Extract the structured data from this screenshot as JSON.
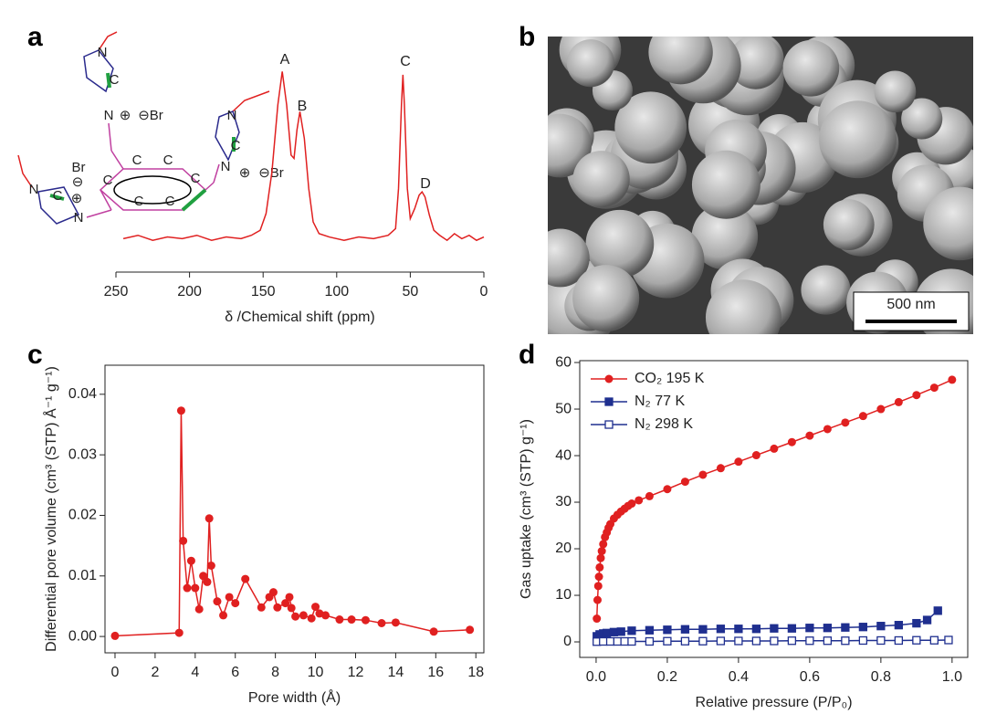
{
  "panel_labels": [
    "a",
    "b",
    "c",
    "d"
  ],
  "structure": {
    "labels": [
      "N",
      "C",
      "N",
      "⊕",
      "⊖Br",
      "N",
      "C",
      "N",
      "⊕",
      "⊖Br",
      "Br",
      "⊖",
      "N",
      "C",
      "⊕",
      "N",
      "C",
      "C",
      "C",
      "C",
      "C",
      "C"
    ]
  },
  "image_panel": {
    "scale_bar": "500 nm"
  },
  "chart_data": [
    {
      "type": "line",
      "xlabel": "δ /Chemical shift (ppm)",
      "color": "#e02020",
      "x": [
        245,
        235,
        225,
        215,
        205,
        195,
        185,
        175,
        165,
        158,
        152,
        148,
        144,
        140,
        137,
        134,
        131,
        129,
        127,
        125,
        122,
        119,
        116,
        112,
        105,
        95,
        85,
        75,
        65,
        60,
        58,
        56,
        55,
        54,
        52,
        50,
        47,
        44,
        42,
        40,
        37,
        34,
        30,
        25,
        20,
        15,
        10,
        5,
        0
      ],
      "values": [
        0,
        2,
        -1,
        1,
        0,
        2,
        -1,
        1,
        0,
        2,
        5,
        15,
        40,
        80,
        100,
        80,
        50,
        48,
        65,
        76,
        60,
        30,
        10,
        3,
        1,
        -1,
        1,
        0,
        2,
        6,
        30,
        80,
        98,
        80,
        30,
        12,
        18,
        26,
        28,
        25,
        14,
        5,
        2,
        -1,
        3,
        0,
        2,
        -1,
        1
      ],
      "xlim": [
        250,
        0
      ],
      "xticks": [
        250,
        200,
        150,
        100,
        50,
        0
      ],
      "ylim": [
        -20,
        110
      ],
      "annotations": [
        {
          "text": "A",
          "color": "#2ca02c"
        },
        {
          "text": "B",
          "color": "#2a2a8c"
        },
        {
          "text": "C",
          "color": "#d0209a"
        },
        {
          "text": "D",
          "color": "#e02020"
        }
      ]
    },
    {
      "type": "line",
      "xlabel": "Pore width (Å)",
      "ylabel": "Differential pore volume (cm³ (STP) Å⁻¹ g⁻¹)",
      "series": [
        {
          "name": null,
          "color": "#e02020",
          "marker": "circle",
          "x": [
            0,
            3.2,
            3.3,
            3.4,
            3.6,
            3.8,
            4.0,
            4.2,
            4.4,
            4.6,
            4.7,
            4.8,
            5.1,
            5.4,
            5.7,
            6.0,
            6.5,
            7.3,
            7.7,
            7.9,
            8.1,
            8.5,
            8.7,
            8.8,
            9.0,
            9.4,
            9.8,
            10.0,
            10.2,
            10.5,
            11.2,
            11.8,
            12.5,
            13.3,
            14.0,
            15.9,
            17.7
          ],
          "values": [
            0.0001,
            0.0006,
            0.0373,
            0.0158,
            0.008,
            0.0125,
            0.008,
            0.0045,
            0.01,
            0.009,
            0.0195,
            0.0117,
            0.0058,
            0.0035,
            0.0065,
            0.0055,
            0.0095,
            0.0048,
            0.0065,
            0.0073,
            0.0048,
            0.0055,
            0.0065,
            0.0047,
            0.0033,
            0.0035,
            0.003,
            0.0049,
            0.0038,
            0.0035,
            0.0028,
            0.0028,
            0.0027,
            0.0022,
            0.0023,
            0.0008,
            0.0011
          ]
        }
      ],
      "xlim": [
        -0.5,
        18.4
      ],
      "xticks": [
        0,
        2,
        4,
        6,
        8,
        10,
        12,
        14,
        16,
        18
      ],
      "ylim": [
        -0.0027,
        0.0448
      ],
      "yticks": [
        {
          "value": 0,
          "label": "0.00"
        },
        0.01,
        0.02,
        0.03,
        0.04
      ]
    },
    {
      "type": "line",
      "xlabel": "Relative pressure (P/P₀)",
      "ylabel": "Gas uptake (cm³ (STP) g⁻¹)",
      "legend": "upper left",
      "series": [
        {
          "name": "CO₂ 195 K",
          "color": "#e02020",
          "marker": "circle",
          "x": [
            0.002,
            0.004,
            0.006,
            0.008,
            0.01,
            0.013,
            0.016,
            0.02,
            0.025,
            0.03,
            0.035,
            0.04,
            0.05,
            0.06,
            0.07,
            0.08,
            0.09,
            0.1,
            0.12,
            0.15,
            0.2,
            0.25,
            0.3,
            0.35,
            0.4,
            0.45,
            0.5,
            0.55,
            0.6,
            0.65,
            0.7,
            0.75,
            0.8,
            0.85,
            0.9,
            0.95,
            1.0
          ],
          "values": [
            5,
            9,
            12,
            14,
            16,
            18,
            19.5,
            21,
            22.5,
            23.5,
            24.5,
            25.3,
            26.5,
            27.3,
            28,
            28.6,
            29.2,
            29.7,
            30.4,
            31.3,
            32.8,
            34.4,
            35.9,
            37.3,
            38.7,
            40.1,
            41.5,
            42.9,
            44.3,
            45.7,
            47.1,
            48.5,
            50.0,
            51.5,
            53.0,
            54.6,
            56.3
          ]
        },
        {
          "name": "N₂   77 K",
          "color": "#1f2f8f",
          "marker": "square",
          "x": [
            0.002,
            0.01,
            0.02,
            0.03,
            0.05,
            0.07,
            0.1,
            0.15,
            0.2,
            0.25,
            0.3,
            0.35,
            0.4,
            0.45,
            0.5,
            0.55,
            0.6,
            0.65,
            0.7,
            0.75,
            0.8,
            0.85,
            0.9,
            0.93,
            0.96
          ],
          "values": [
            1.2,
            1.6,
            1.8,
            1.9,
            2.1,
            2.2,
            2.4,
            2.5,
            2.6,
            2.7,
            2.7,
            2.8,
            2.8,
            2.8,
            2.9,
            2.9,
            3.0,
            3.0,
            3.1,
            3.2,
            3.4,
            3.6,
            4.0,
            4.7,
            6.7
          ]
        },
        {
          "name": "N₂  298 K",
          "color": "#1f2f8f",
          "marker": "open-square",
          "x": [
            0.002,
            0.02,
            0.04,
            0.06,
            0.08,
            0.1,
            0.15,
            0.2,
            0.25,
            0.3,
            0.35,
            0.4,
            0.45,
            0.5,
            0.55,
            0.6,
            0.65,
            0.7,
            0.75,
            0.8,
            0.85,
            0.9,
            0.95,
            0.99
          ],
          "values": [
            0.05,
            0.1,
            0.1,
            0.1,
            0.1,
            0.1,
            0.1,
            0.15,
            0.15,
            0.15,
            0.2,
            0.2,
            0.2,
            0.2,
            0.25,
            0.25,
            0.25,
            0.25,
            0.3,
            0.3,
            0.3,
            0.35,
            0.35,
            0.4
          ]
        }
      ],
      "xlim": [
        -0.046,
        1.044
      ],
      "xticks": [
        {
          "value": 0,
          "label": "0.0"
        },
        0.2,
        0.4,
        0.6,
        0.8,
        {
          "value": 1,
          "label": "1.0"
        }
      ],
      "ylim": [
        -3.33,
        60.4
      ],
      "yticks": [
        0,
        10,
        20,
        30,
        40,
        50,
        60
      ]
    }
  ]
}
